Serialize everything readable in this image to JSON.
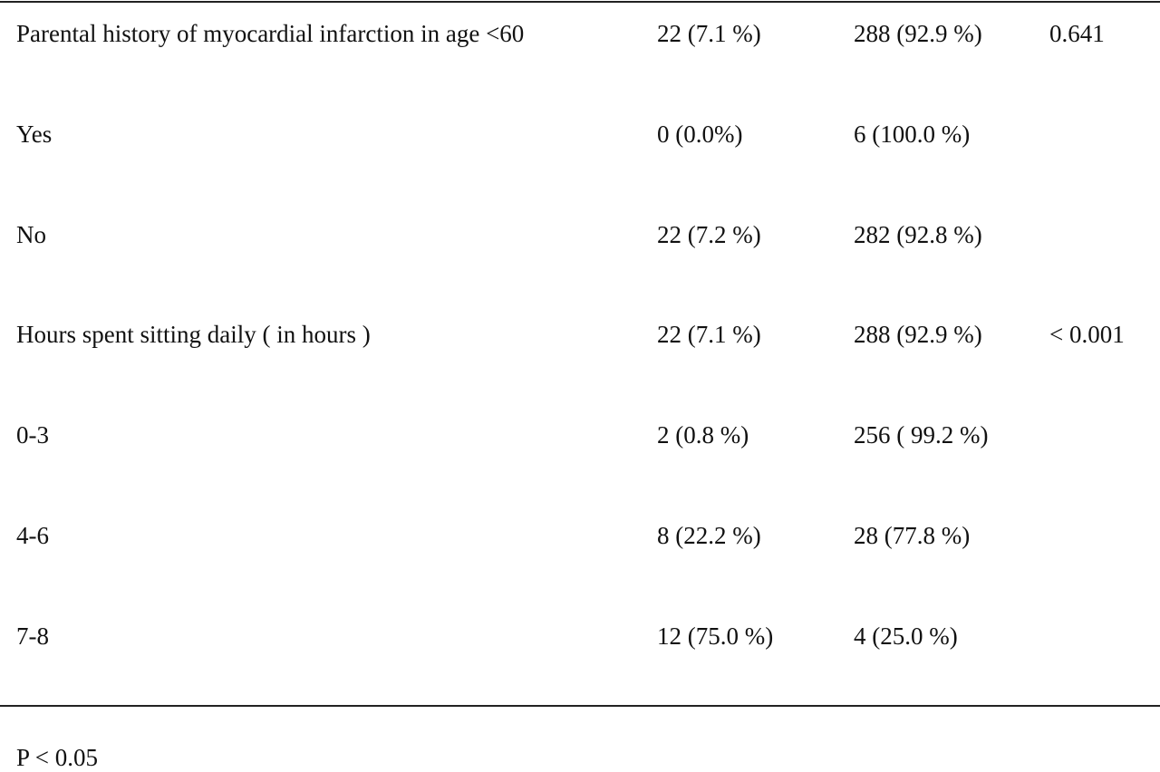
{
  "table": {
    "rows": [
      {
        "label": "Parental history of myocardial infarction in age <60",
        "col1": "22 (7.1 %)",
        "col2": "288 (92.9 %)",
        "p": "0.641"
      },
      {
        "label": "Yes",
        "col1": "0 (0.0%)",
        "col2": "6 (100.0 %)"
      },
      {
        "label": "No",
        "col1": "22 (7.2 %)",
        "col2": "282 (92.8 %)"
      },
      {
        "label": "Hours spent sitting daily ( in hours )",
        "col1": "22 (7.1 %)",
        "col2": "288 (92.9 %)",
        "p": "< 0.001"
      },
      {
        "label": "0-3",
        "col1": "2 (0.8 %)",
        "col2": "256 ( 99.2 %)"
      },
      {
        "label": "4-6",
        "col1": "8 (22.2 %)",
        "col2": "28 (77.8 %)"
      },
      {
        "label": "7-8",
        "col1": "12 (75.0 %)",
        "col2": "4 (25.0 %)"
      }
    ]
  },
  "footnote": "P < 0.05"
}
